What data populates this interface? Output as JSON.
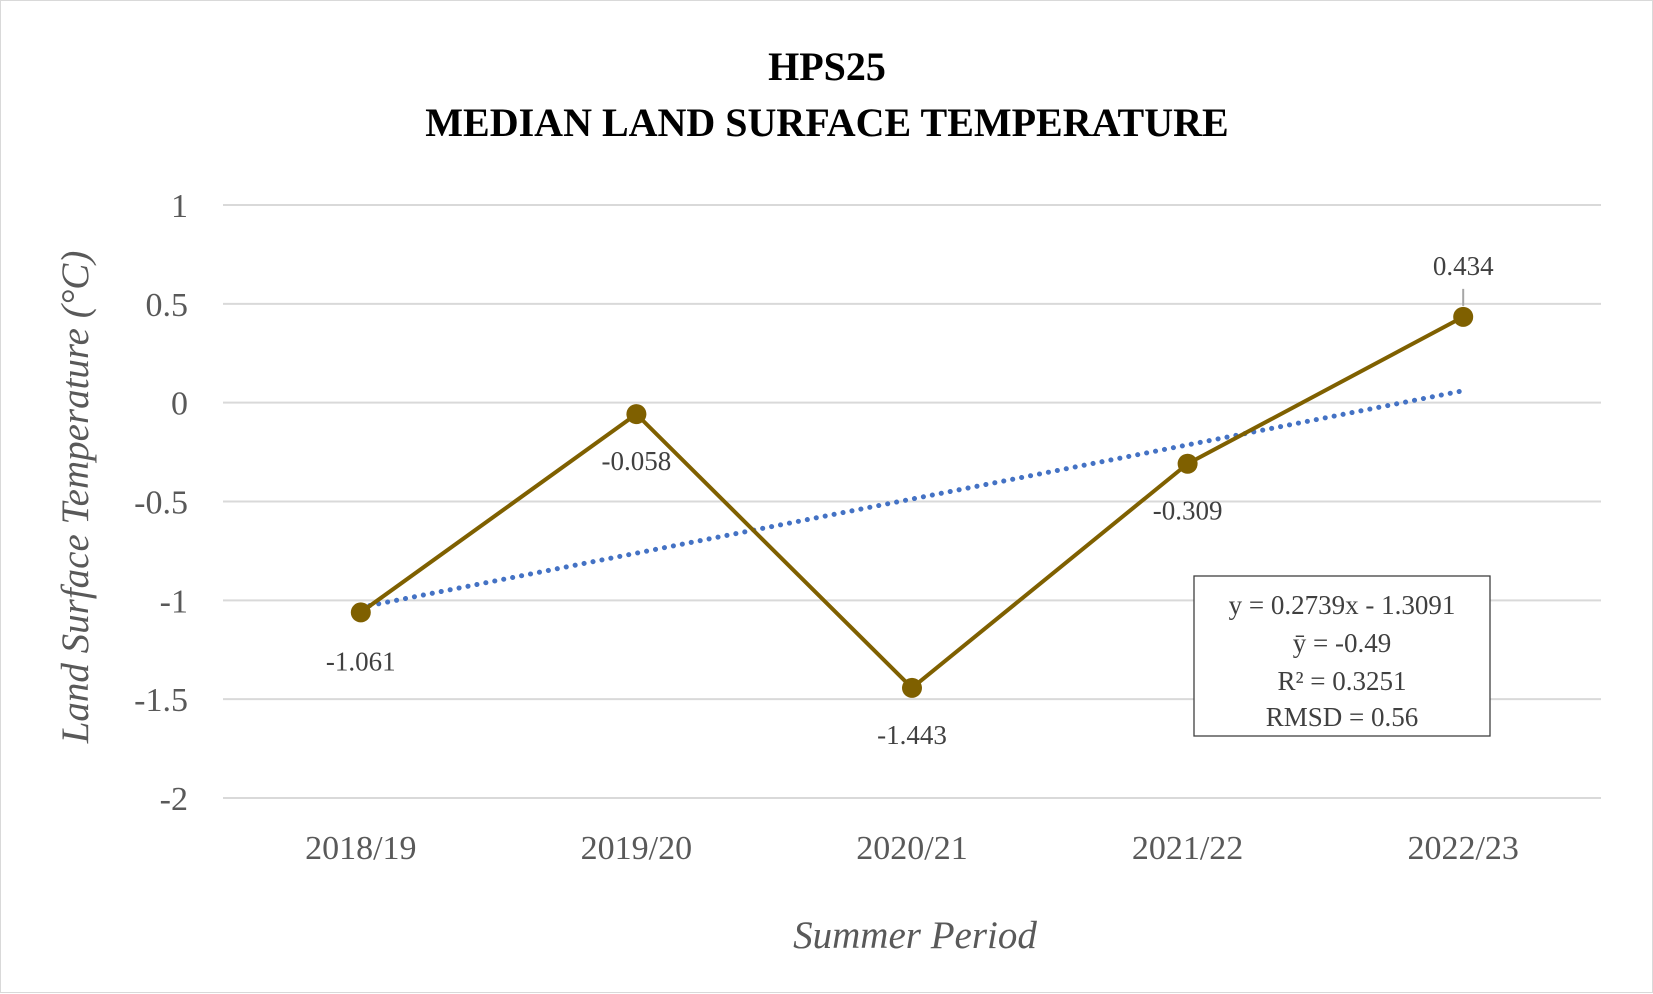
{
  "chart_data": {
    "type": "line",
    "title": [
      "HPS25",
      "MEDIAN LAND SURFACE TEMPERATURE"
    ],
    "xlabel": "Summer Period",
    "ylabel": "Land Surface Temperature (°C)",
    "categories": [
      "2018/19",
      "2019/20",
      "2020/21",
      "2021/22",
      "2022/23"
    ],
    "series": [
      {
        "values": [
          -1.061,
          -0.058,
          -1.443,
          -0.309,
          0.434
        ],
        "data_labels": [
          "-1.061",
          "-0.058",
          "-1.443",
          "-0.309",
          "0.434"
        ],
        "color": "#7f6000"
      }
    ],
    "trendline": {
      "type": "linear",
      "style": "dotted",
      "color": "#4472c4",
      "slope": 0.2739,
      "intercept": -1.3091
    },
    "annotation": [
      "y = 0.2739x - 1.3091",
      "ȳ = -0.49",
      "R² = 0.3251",
      "RMSD = 0.56"
    ],
    "ylim": [
      -2,
      1
    ],
    "yticks": [
      1,
      0.5,
      0,
      -0.5,
      -1,
      -1.5,
      -2
    ],
    "ytick_labels": [
      "1",
      "0.5",
      "0",
      "-0.5",
      "-1",
      "-1.5",
      "-2"
    ],
    "grid": true,
    "legend": "none"
  }
}
